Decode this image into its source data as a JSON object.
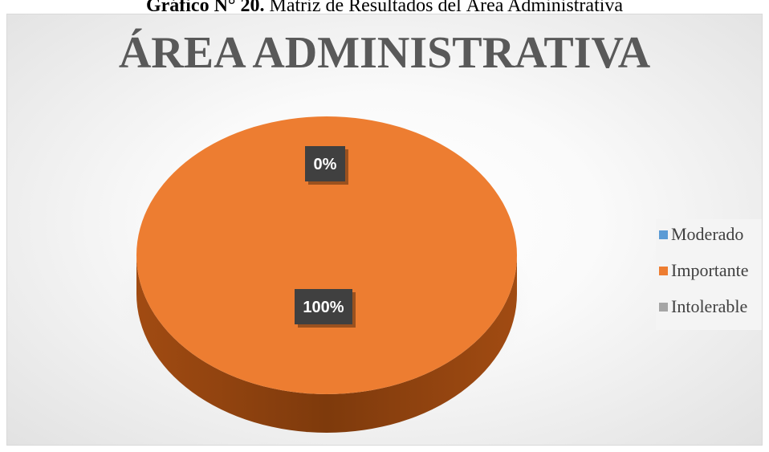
{
  "caption": {
    "prefix": "Gráfico N° 20.",
    "text": "Matriz de Resultados del Área Administrativa"
  },
  "chart_data": {
    "type": "pie",
    "title": "ÁREA ADMINISTRATIVA",
    "legend_position": "right",
    "slices": [
      {
        "name": "Moderado",
        "value": 0,
        "label": "0%",
        "color": "#5b9bd5"
      },
      {
        "name": "Importante",
        "value": 100,
        "label": "100%",
        "color": "#ed7d31"
      },
      {
        "name": "Intolerable",
        "value": 0,
        "label": null,
        "color": "#a5a5a5"
      }
    ],
    "visible_labels": [
      "0%",
      "100%"
    ]
  }
}
